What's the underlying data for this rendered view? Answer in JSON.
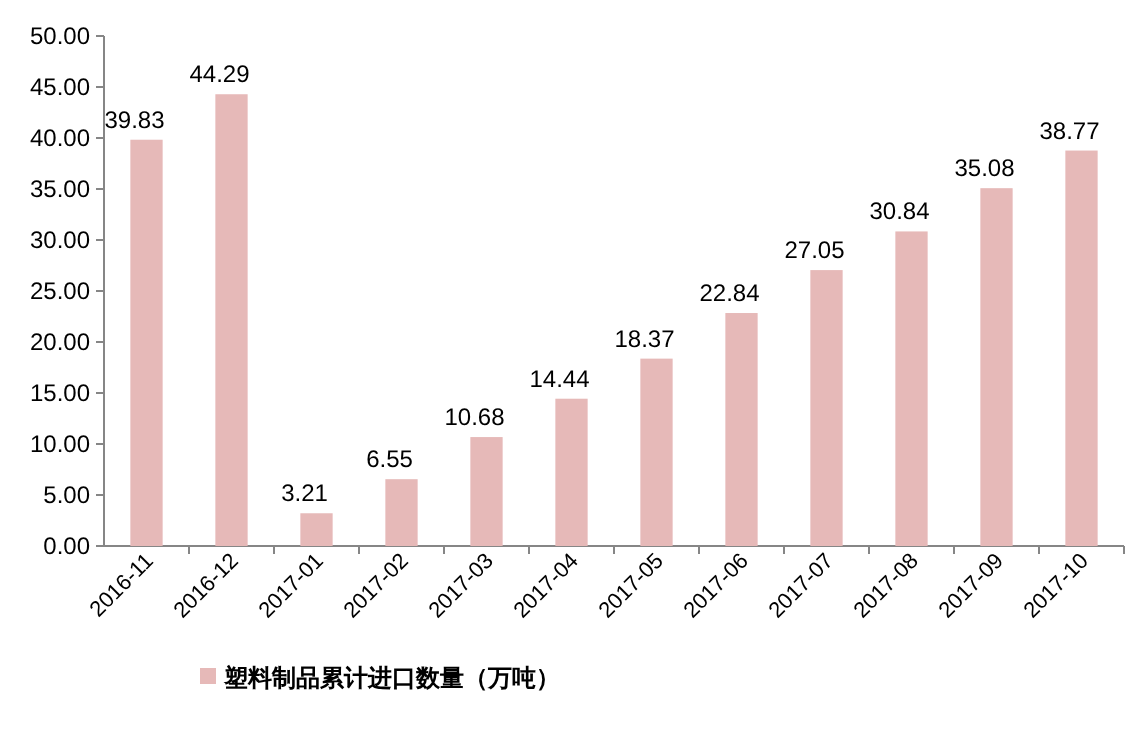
{
  "chart_data": {
    "type": "bar",
    "categories": [
      "2016-11",
      "2016-12",
      "2017-01",
      "2017-02",
      "2017-03",
      "2017-04",
      "2017-05",
      "2017-06",
      "2017-07",
      "2017-08",
      "2017-09",
      "2017-10"
    ],
    "series": [
      {
        "name": "塑料制品累计进口数量（万吨）",
        "color": "#e6b9b8",
        "values": [
          39.83,
          44.29,
          3.21,
          6.55,
          10.68,
          14.44,
          18.37,
          22.84,
          27.05,
          30.84,
          35.08,
          38.77
        ]
      }
    ],
    "ylim": [
      0,
      50
    ],
    "yticks": [
      {
        "value": 0,
        "label": "0.00"
      },
      {
        "value": 5,
        "label": "5.00"
      },
      {
        "value": 10,
        "label": "10.00"
      },
      {
        "value": 15,
        "label": "15.00"
      },
      {
        "value": 20,
        "label": "20.00"
      },
      {
        "value": 25,
        "label": "25.00"
      },
      {
        "value": 30,
        "label": "30.00"
      },
      {
        "value": 35,
        "label": "35.00"
      },
      {
        "value": 40,
        "label": "40.00"
      },
      {
        "value": 45,
        "label": "45.00"
      },
      {
        "value": 50,
        "label": "50.00"
      }
    ],
    "data_labels": true,
    "legend": "bottom"
  }
}
